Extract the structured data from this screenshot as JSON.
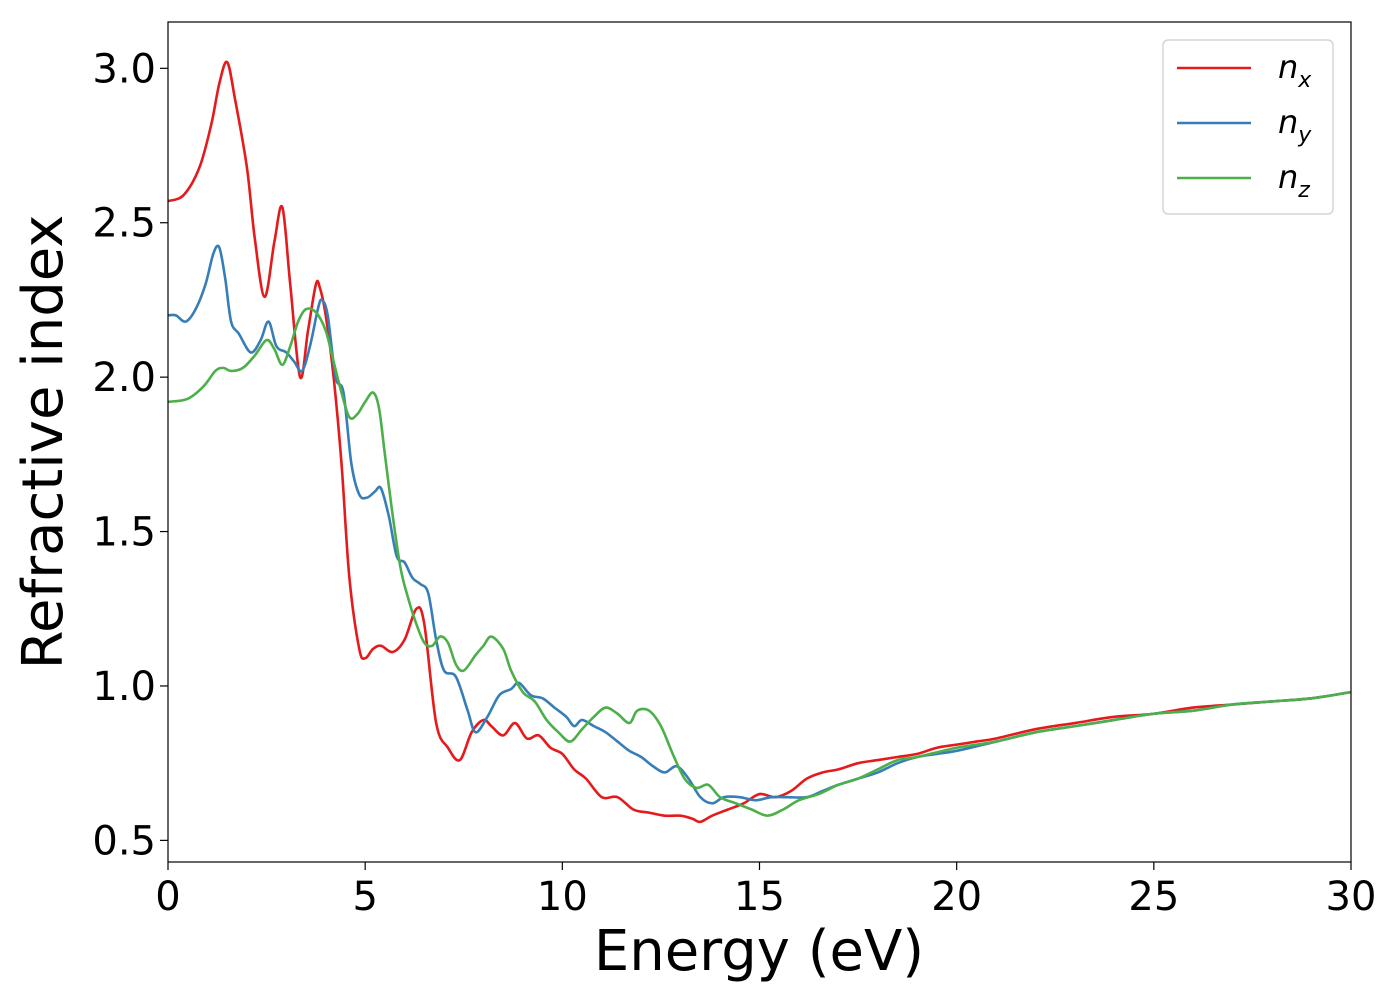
{
  "chart_data": {
    "type": "line",
    "xlabel": "Energy (eV)",
    "ylabel": "Refractive index",
    "xlim": [
      0,
      30
    ],
    "ylim": [
      0.43,
      3.15
    ],
    "xticks": [
      0,
      5,
      10,
      15,
      20,
      25,
      30
    ],
    "xtick_labels": [
      "0",
      "5",
      "10",
      "15",
      "20",
      "25",
      "30"
    ],
    "yticks": [
      0.5,
      1.0,
      1.5,
      2.0,
      2.5,
      3.0
    ],
    "ytick_labels": [
      "0.5",
      "1.0",
      "1.5",
      "2.0",
      "2.5",
      "3.0"
    ],
    "grid": false,
    "legend_position": "top-right",
    "series": [
      {
        "name": "n_x",
        "label_base": "n",
        "label_sub": "x",
        "color": "#e41a1c",
        "x": [
          0,
          0.4,
          0.8,
          1.1,
          1.3,
          1.5,
          1.7,
          2.0,
          2.2,
          2.45,
          2.7,
          2.9,
          3.1,
          3.35,
          3.55,
          3.75,
          3.85,
          4.0,
          4.2,
          4.4,
          4.6,
          4.85,
          5.0,
          5.2,
          5.4,
          5.7,
          6.0,
          6.3,
          6.5,
          6.8,
          7.1,
          7.4,
          7.7,
          8.0,
          8.2,
          8.5,
          8.8,
          9.1,
          9.4,
          9.7,
          10.0,
          10.3,
          10.6,
          11.0,
          11.4,
          11.8,
          12.2,
          12.6,
          13.0,
          13.3,
          13.5,
          13.8,
          14.2,
          14.6,
          15.0,
          15.4,
          15.8,
          16.2,
          16.6,
          17.0,
          17.5,
          18.0,
          18.5,
          19.0,
          19.5,
          20.0,
          20.5,
          21.0,
          22.0,
          23.0,
          24.0,
          25.0,
          26.0,
          27.0,
          28.0,
          29.0,
          30.0
        ],
        "y": [
          2.57,
          2.59,
          2.68,
          2.82,
          2.95,
          3.02,
          2.9,
          2.68,
          2.45,
          2.26,
          2.44,
          2.55,
          2.3,
          2.0,
          2.15,
          2.3,
          2.29,
          2.2,
          2.0,
          1.72,
          1.35,
          1.12,
          1.09,
          1.12,
          1.13,
          1.11,
          1.15,
          1.25,
          1.2,
          0.88,
          0.8,
          0.76,
          0.85,
          0.89,
          0.87,
          0.84,
          0.88,
          0.83,
          0.84,
          0.8,
          0.78,
          0.73,
          0.7,
          0.64,
          0.64,
          0.6,
          0.59,
          0.58,
          0.58,
          0.57,
          0.56,
          0.58,
          0.6,
          0.62,
          0.65,
          0.64,
          0.66,
          0.7,
          0.72,
          0.73,
          0.75,
          0.76,
          0.77,
          0.78,
          0.8,
          0.81,
          0.82,
          0.83,
          0.86,
          0.88,
          0.9,
          0.91,
          0.93,
          0.94,
          0.95,
          0.96,
          0.98
        ]
      },
      {
        "name": "n_y",
        "label_base": "n",
        "label_sub": "y",
        "color": "#377eb8",
        "x": [
          0,
          0.2,
          0.45,
          0.7,
          0.95,
          1.15,
          1.3,
          1.45,
          1.6,
          1.8,
          2.1,
          2.35,
          2.55,
          2.75,
          3.0,
          3.2,
          3.4,
          3.6,
          3.8,
          3.9,
          4.05,
          4.25,
          4.45,
          4.65,
          4.85,
          5.05,
          5.25,
          5.4,
          5.6,
          5.8,
          6.0,
          6.2,
          6.4,
          6.6,
          6.8,
          7.0,
          7.3,
          7.6,
          7.8,
          8.1,
          8.4,
          8.7,
          8.9,
          9.2,
          9.5,
          9.8,
          10.1,
          10.3,
          10.5,
          10.8,
          11.1,
          11.4,
          11.7,
          12.0,
          12.3,
          12.6,
          12.9,
          13.2,
          13.5,
          13.8,
          14.1,
          14.5,
          14.9,
          15.3,
          15.7,
          16.2,
          16.6,
          17.0,
          17.5,
          18.0,
          18.5,
          19.0,
          19.5,
          20.0,
          21.0,
          22.0,
          23.0,
          24.0,
          25.0,
          26.0,
          27.0,
          28.0,
          29.0,
          30.0
        ],
        "y": [
          2.2,
          2.2,
          2.18,
          2.22,
          2.3,
          2.4,
          2.42,
          2.32,
          2.18,
          2.14,
          2.08,
          2.12,
          2.18,
          2.1,
          2.08,
          2.05,
          2.02,
          2.1,
          2.22,
          2.25,
          2.2,
          2.0,
          1.95,
          1.72,
          1.62,
          1.61,
          1.63,
          1.64,
          1.55,
          1.42,
          1.4,
          1.35,
          1.33,
          1.3,
          1.15,
          1.05,
          1.03,
          0.92,
          0.85,
          0.9,
          0.97,
          0.99,
          1.01,
          0.97,
          0.96,
          0.93,
          0.9,
          0.87,
          0.89,
          0.87,
          0.85,
          0.82,
          0.79,
          0.77,
          0.74,
          0.72,
          0.74,
          0.7,
          0.64,
          0.62,
          0.64,
          0.64,
          0.63,
          0.64,
          0.64,
          0.64,
          0.66,
          0.68,
          0.7,
          0.72,
          0.75,
          0.77,
          0.78,
          0.79,
          0.82,
          0.85,
          0.87,
          0.89,
          0.91,
          0.92,
          0.94,
          0.95,
          0.96,
          0.98
        ]
      },
      {
        "name": "n_z",
        "label_base": "n",
        "label_sub": "z",
        "color": "#4daf4a",
        "x": [
          0,
          0.5,
          0.9,
          1.2,
          1.4,
          1.6,
          1.9,
          2.2,
          2.5,
          2.7,
          2.9,
          3.1,
          3.3,
          3.5,
          3.75,
          4.0,
          4.2,
          4.4,
          4.6,
          4.8,
          5.0,
          5.2,
          5.35,
          5.5,
          5.7,
          5.9,
          6.1,
          6.3,
          6.5,
          6.7,
          6.9,
          7.1,
          7.3,
          7.5,
          7.8,
          8.0,
          8.2,
          8.5,
          8.7,
          9.0,
          9.3,
          9.6,
          9.9,
          10.2,
          10.5,
          10.8,
          11.1,
          11.4,
          11.7,
          11.9,
          12.2,
          12.5,
          12.8,
          13.1,
          13.4,
          13.7,
          14.0,
          14.4,
          14.8,
          15.2,
          15.6,
          16.0,
          16.5,
          17.0,
          17.5,
          18.0,
          18.5,
          19.0,
          20.0,
          21.0,
          22.0,
          23.0,
          24.0,
          25.0,
          26.0,
          27.0,
          28.0,
          29.0,
          30.0
        ],
        "y": [
          1.92,
          1.93,
          1.97,
          2.02,
          2.03,
          2.02,
          2.03,
          2.07,
          2.12,
          2.09,
          2.04,
          2.1,
          2.18,
          2.22,
          2.21,
          2.15,
          2.05,
          1.95,
          1.87,
          1.88,
          1.92,
          1.95,
          1.9,
          1.75,
          1.55,
          1.38,
          1.28,
          1.2,
          1.14,
          1.13,
          1.16,
          1.14,
          1.07,
          1.05,
          1.1,
          1.13,
          1.16,
          1.12,
          1.05,
          0.98,
          0.95,
          0.89,
          0.85,
          0.82,
          0.86,
          0.9,
          0.93,
          0.91,
          0.88,
          0.92,
          0.92,
          0.87,
          0.78,
          0.7,
          0.67,
          0.68,
          0.64,
          0.62,
          0.6,
          0.58,
          0.6,
          0.63,
          0.65,
          0.68,
          0.7,
          0.73,
          0.76,
          0.77,
          0.8,
          0.82,
          0.85,
          0.87,
          0.89,
          0.91,
          0.92,
          0.94,
          0.95,
          0.96,
          0.98
        ]
      }
    ]
  }
}
